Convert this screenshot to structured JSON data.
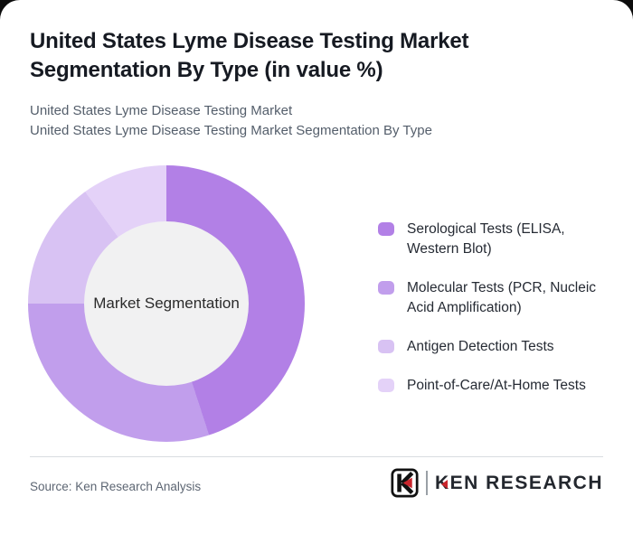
{
  "header": {
    "title": "United States Lyme Disease Testing Market Segmentation By Type (in value %)",
    "subtitle_line1": "United States Lyme Disease Testing Market",
    "subtitle_line2": "United States Lyme Disease Testing Market Segmentation By Type"
  },
  "chart_data": {
    "type": "pie",
    "subtype": "donut",
    "title": "United States Lyme Disease Testing Market Segmentation By Type (in value %)",
    "center_label": "Market Segmentation",
    "categories": [
      "Serological Tests (ELISA, Western Blot)",
      "Molecular Tests (PCR, Nucleic Acid Amplification)",
      "Antigen Detection Tests",
      "Point-of-Care/At-Home Tests"
    ],
    "values": [
      45,
      30,
      15,
      10
    ],
    "unit": "%",
    "colors": [
      "#b280e6",
      "#c19eec",
      "#d8c2f3",
      "#e4d2f8"
    ],
    "start_angle_deg": 0,
    "direction": "clockwise",
    "legend_position": "right",
    "inner_circle_color": "#f1f1f2",
    "data_labels_shown": false
  },
  "footer": {
    "source": "Source: Ken Research Analysis",
    "logo_brand": "KEN RESEARCH",
    "logo_accent_color": "#c9252c",
    "logo_ink_color": "#23272e"
  }
}
